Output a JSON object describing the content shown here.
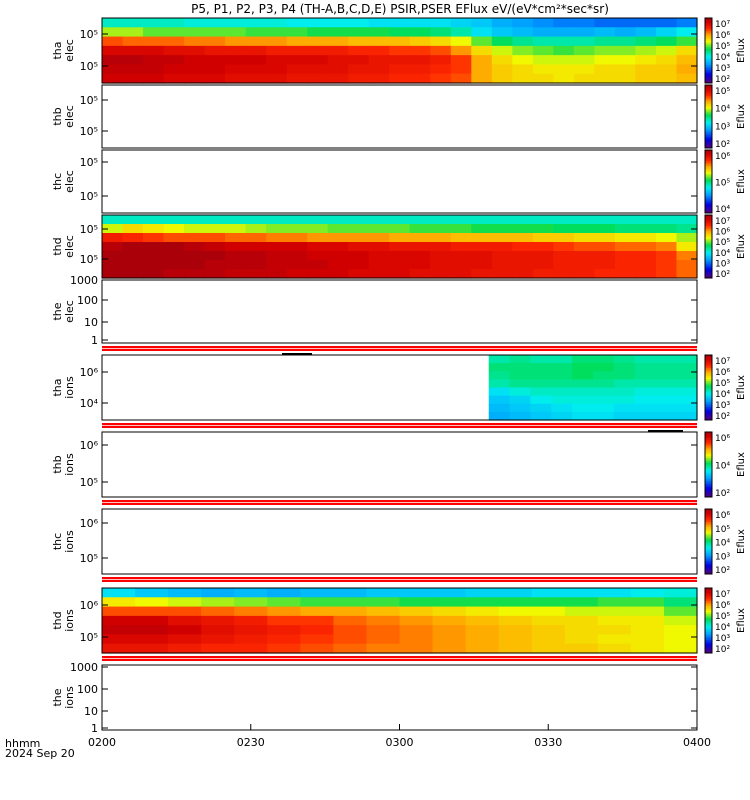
{
  "title": "P5, P1, P2, P3, P4 (TH-A,B,C,D,E) PSIR,PSER EFlux eV/(eV*cm²*sec*sr)",
  "footer": {
    "label1": "hhmm",
    "label2": "2024 Sep 20"
  },
  "colorbar_label": "Eflux",
  "chart_data": {
    "type": "heatmap",
    "x_axis": {
      "ticks": [
        "0200",
        "0230",
        "0300",
        "0330",
        "0400"
      ],
      "range": [
        "02:00",
        "04:00"
      ]
    },
    "panels": [
      {
        "probe": "tha",
        "species": "elec",
        "yscale": "log",
        "yticks": [
          "10⁵",
          "10⁵"
        ],
        "colorbar": true,
        "cb_ticks": [
          "10⁷",
          "10⁶",
          "10⁵",
          "10⁴",
          "10³",
          "10²"
        ],
        "has_data": true,
        "cmin": 2,
        "cmax": 7.3,
        "data": [
          [
            4.3,
            4.3,
            4.3,
            4.3,
            4.2,
            4.2,
            4.2,
            4.2,
            4.2,
            4.1,
            4.1,
            4.1,
            4.1,
            4.0,
            4.0,
            4.0,
            4.0,
            3.9,
            3.8,
            3.6,
            3.5,
            3.4,
            3.3,
            3.3,
            3.2,
            3.2,
            3.2,
            3.2,
            3.3
          ],
          [
            5.2,
            5.2,
            5.0,
            5.0,
            5.0,
            5.0,
            5.0,
            4.9,
            4.9,
            4.9,
            4.8,
            4.8,
            4.8,
            4.8,
            4.7,
            4.7,
            4.6,
            4.4,
            4.0,
            3.8,
            3.7,
            3.6,
            3.6,
            3.6,
            3.7,
            3.6,
            3.7,
            3.9,
            4.1
          ],
          [
            6.3,
            6.2,
            6.2,
            6.2,
            6.1,
            6.1,
            6.0,
            6.0,
            6.0,
            5.9,
            5.9,
            5.9,
            5.8,
            5.8,
            5.8,
            5.7,
            5.6,
            5.4,
            5.0,
            4.7,
            4.5,
            4.4,
            4.4,
            4.4,
            4.5,
            4.5,
            4.6,
            4.7,
            4.9
          ],
          [
            6.9,
            6.9,
            6.9,
            6.8,
            6.8,
            6.7,
            6.7,
            6.7,
            6.6,
            6.6,
            6.6,
            6.6,
            6.5,
            6.5,
            6.4,
            6.4,
            6.3,
            6.0,
            5.6,
            5.3,
            5.1,
            5.0,
            4.9,
            5.0,
            5.1,
            5.1,
            5.2,
            5.3,
            5.6
          ],
          [
            7.2,
            7.2,
            7.1,
            7.1,
            7.0,
            7.0,
            7.0,
            7.0,
            6.9,
            6.9,
            6.9,
            6.8,
            6.8,
            6.7,
            6.7,
            6.7,
            6.6,
            6.4,
            5.9,
            5.6,
            5.4,
            5.3,
            5.3,
            5.3,
            5.4,
            5.4,
            5.5,
            5.6,
            5.8
          ],
          [
            7.1,
            7.1,
            7.1,
            7.0,
            7.0,
            7.0,
            6.9,
            6.9,
            6.9,
            6.8,
            6.8,
            6.8,
            6.7,
            6.7,
            6.6,
            6.6,
            6.5,
            6.4,
            5.9,
            5.7,
            5.6,
            5.5,
            5.5,
            5.5,
            5.6,
            5.6,
            5.7,
            5.7,
            5.9
          ],
          [
            7.0,
            7.0,
            7.0,
            6.9,
            6.9,
            6.9,
            6.8,
            6.8,
            6.8,
            6.7,
            6.7,
            6.7,
            6.6,
            6.6,
            6.5,
            6.5,
            6.4,
            6.3,
            5.9,
            5.7,
            5.6,
            5.6,
            5.5,
            5.6,
            5.6,
            5.6,
            5.7,
            5.7,
            5.8
          ]
        ]
      },
      {
        "probe": "thb",
        "species": "elec",
        "yscale": "log",
        "yticks": [
          "10⁵",
          "10⁵"
        ],
        "colorbar": true,
        "cb_ticks": [
          "10⁵",
          "10⁴",
          "10³",
          "10²"
        ],
        "has_data": false
      },
      {
        "probe": "thc",
        "species": "elec",
        "yscale": "log",
        "yticks": [
          "10⁵",
          "10⁵"
        ],
        "colorbar": true,
        "cb_ticks": [
          "10⁶",
          "10⁵",
          "10⁴"
        ],
        "has_data": false
      },
      {
        "probe": "thd",
        "species": "elec",
        "yscale": "log",
        "yticks": [
          "10⁵",
          "10⁵"
        ],
        "colorbar": true,
        "cb_ticks": [
          "10⁷",
          "10⁶",
          "10⁵",
          "10⁴",
          "10³",
          "10²"
        ],
        "has_data": true,
        "cmin": 2,
        "cmax": 7.3,
        "data": [
          [
            4.3,
            4.3,
            4.3,
            4.3,
            4.3,
            4.3,
            4.3,
            4.3,
            4.3,
            4.3,
            4.3,
            4.3,
            4.3,
            4.3,
            4.3,
            4.3,
            4.3,
            4.3,
            4.3,
            4.3,
            4.3,
            4.3,
            4.3,
            4.3,
            4.3,
            4.3,
            4.3,
            4.3,
            4.3
          ],
          [
            5.3,
            5.6,
            5.5,
            5.4,
            5.3,
            5.3,
            5.3,
            5.2,
            5.1,
            5.1,
            5.1,
            5.0,
            5.0,
            5.0,
            5.0,
            4.9,
            4.9,
            4.9,
            4.8,
            4.8,
            4.8,
            4.8,
            4.7,
            4.7,
            4.7,
            4.6,
            4.6,
            4.6,
            4.5
          ],
          [
            6.6,
            6.5,
            6.4,
            6.3,
            6.3,
            6.3,
            6.2,
            6.2,
            6.1,
            6.1,
            6.0,
            6.0,
            6.0,
            6.0,
            5.9,
            5.9,
            5.9,
            5.8,
            5.8,
            5.8,
            5.8,
            5.7,
            5.7,
            5.6,
            5.6,
            5.5,
            5.5,
            5.4,
            5.2
          ],
          [
            7.2,
            7.3,
            7.3,
            7.3,
            7.2,
            7.1,
            7.0,
            7.0,
            7.0,
            7.0,
            6.9,
            6.9,
            6.8,
            6.8,
            6.7,
            6.7,
            6.7,
            6.6,
            6.6,
            6.6,
            6.5,
            6.5,
            6.4,
            6.3,
            6.3,
            6.2,
            6.2,
            6.1,
            5.5
          ],
          [
            7.3,
            7.3,
            7.3,
            7.3,
            7.3,
            7.3,
            7.2,
            7.2,
            7.1,
            7.1,
            7.0,
            7.0,
            7.0,
            6.9,
            6.9,
            6.9,
            6.8,
            6.8,
            6.8,
            6.7,
            6.7,
            6.7,
            6.6,
            6.6,
            6.6,
            6.5,
            6.5,
            6.4,
            6.1
          ],
          [
            7.3,
            7.3,
            7.3,
            7.3,
            7.3,
            7.2,
            7.2,
            7.2,
            7.1,
            7.1,
            7.1,
            7.0,
            7.0,
            6.9,
            6.9,
            6.9,
            6.8,
            6.8,
            6.8,
            6.7,
            6.7,
            6.7,
            6.6,
            6.6,
            6.6,
            6.5,
            6.5,
            6.4,
            6.2
          ],
          [
            7.3,
            7.3,
            7.3,
            7.2,
            7.2,
            7.2,
            7.1,
            7.1,
            7.1,
            7.0,
            7.0,
            7.0,
            6.9,
            6.9,
            6.9,
            6.8,
            6.8,
            6.8,
            6.7,
            6.7,
            6.7,
            6.6,
            6.6,
            6.6,
            6.5,
            6.5,
            6.5,
            6.4,
            6.2
          ]
        ]
      },
      {
        "probe": "the",
        "species": "elec",
        "yscale": "log",
        "yticks": [
          "1000",
          "100",
          "10",
          "1"
        ],
        "colorbar": false,
        "has_data": false,
        "flagbar": true
      },
      {
        "probe": "tha",
        "species": "ions",
        "yscale": "log",
        "yticks": [
          "10⁶",
          "10⁴"
        ],
        "colorbar": true,
        "cb_ticks": [
          "10⁷",
          "10⁶",
          "10⁵",
          "10⁴",
          "10³",
          "10²"
        ],
        "has_data": true,
        "cmin": 2,
        "cmax": 7.3,
        "data_start_frac": 0.65,
        "data": [
          [
            4.4,
            4.5,
            4.4,
            4.4,
            4.6,
            4.6,
            4.5,
            4.4,
            4.4,
            4.4
          ],
          [
            4.6,
            4.6,
            4.6,
            4.6,
            4.7,
            4.7,
            4.6,
            4.5,
            4.5,
            4.5
          ],
          [
            4.5,
            4.6,
            4.6,
            4.6,
            4.7,
            4.6,
            4.6,
            4.5,
            4.5,
            4.5
          ],
          [
            4.4,
            4.5,
            4.5,
            4.5,
            4.5,
            4.5,
            4.4,
            4.4,
            4.4,
            4.4
          ],
          [
            4.0,
            4.2,
            4.3,
            4.3,
            4.3,
            4.3,
            4.3,
            4.2,
            4.2,
            4.2
          ],
          [
            3.8,
            3.9,
            4.1,
            4.2,
            4.2,
            4.2,
            4.2,
            4.1,
            4.1,
            4.1
          ],
          [
            3.7,
            3.8,
            3.9,
            4.0,
            4.1,
            4.1,
            4.0,
            4.0,
            4.0,
            4.0
          ],
          [
            3.6,
            3.7,
            3.8,
            3.9,
            4.0,
            4.0,
            3.9,
            3.9,
            3.9,
            3.9
          ]
        ],
        "flagbar": true
      },
      {
        "probe": "thb",
        "species": "ions",
        "yscale": "log",
        "yticks": [
          "10⁶",
          "10⁵"
        ],
        "colorbar": true,
        "cb_ticks": [
          "10⁶",
          "10⁴",
          "10²"
        ],
        "has_data": false,
        "flagbar": true
      },
      {
        "probe": "thc",
        "species": "ions",
        "yscale": "log",
        "yticks": [
          "10⁶",
          "10⁵"
        ],
        "colorbar": true,
        "cb_ticks": [
          "10⁶",
          "10⁵",
          "10⁴",
          "10³",
          "10²"
        ],
        "has_data": false,
        "flagbar": true
      },
      {
        "probe": "thd",
        "species": "ions",
        "yscale": "log",
        "yticks": [
          "10⁶",
          "10⁵"
        ],
        "colorbar": true,
        "cb_ticks": [
          "10⁷",
          "10⁶",
          "10⁵",
          "10⁴",
          "10³",
          "10²"
        ],
        "has_data": true,
        "cmin": 2,
        "cmax": 7.3,
        "data": [
          [
            4.0,
            3.8,
            3.7,
            3.6,
            3.7,
            3.6,
            3.7,
            3.7,
            3.8,
            3.8,
            3.8,
            3.9,
            3.9,
            4.0,
            4.0,
            4.0,
            4.1,
            4.2
          ],
          [
            5.5,
            5.4,
            5.3,
            5.2,
            5.1,
            5.0,
            4.9,
            4.9,
            4.9,
            4.8,
            4.8,
            4.8,
            4.8,
            4.8,
            4.8,
            4.9,
            4.9,
            4.6
          ],
          [
            6.3,
            6.3,
            6.3,
            6.2,
            6.1,
            6.0,
            5.9,
            5.9,
            5.8,
            5.7,
            5.6,
            5.5,
            5.4,
            5.4,
            5.3,
            5.3,
            5.3,
            5.0
          ],
          [
            7.0,
            7.0,
            6.8,
            6.7,
            6.6,
            6.4,
            6.4,
            6.2,
            6.1,
            6.0,
            5.9,
            5.8,
            5.7,
            5.6,
            5.6,
            5.5,
            5.5,
            5.3
          ],
          [
            7.1,
            7.1,
            7.0,
            6.8,
            6.7,
            6.6,
            6.5,
            6.3,
            6.2,
            6.1,
            6.0,
            5.9,
            5.8,
            5.7,
            5.6,
            5.6,
            5.5,
            5.4
          ],
          [
            6.9,
            6.9,
            6.8,
            6.7,
            6.6,
            6.5,
            6.4,
            6.3,
            6.2,
            6.1,
            6.0,
            5.9,
            5.8,
            5.7,
            5.6,
            5.5,
            5.5,
            5.4
          ],
          [
            6.7,
            6.7,
            6.6,
            6.5,
            6.5,
            6.4,
            6.3,
            6.2,
            6.1,
            6.1,
            6.0,
            5.9,
            5.8,
            5.7,
            5.7,
            5.6,
            5.5,
            5.4
          ]
        ],
        "flagbar": true
      },
      {
        "probe": "the",
        "species": "ions",
        "yscale": "log",
        "yticks": [
          "1000",
          "100",
          "10",
          "1"
        ],
        "colorbar": false,
        "has_data": false
      }
    ]
  }
}
